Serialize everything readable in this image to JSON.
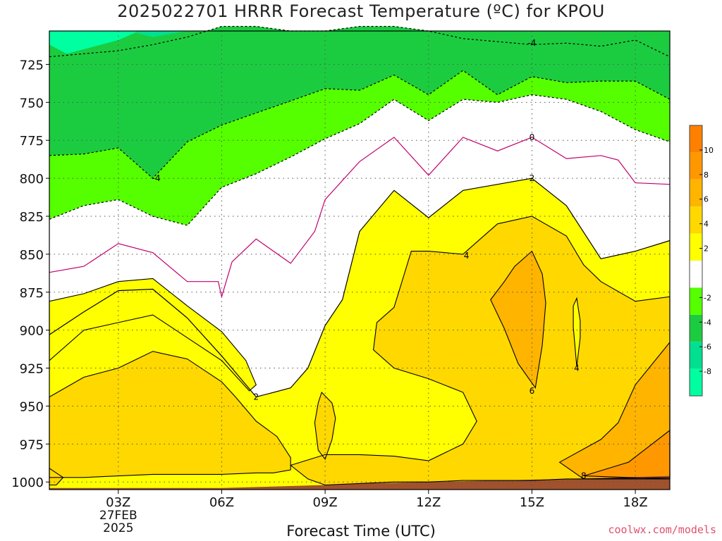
{
  "chart_data": {
    "type": "heatmap",
    "title": "2025022701 HRRR Forecast Temperature (ºC) for KPOU",
    "xlabel": "Forecast Time (UTC)",
    "ylabel": "",
    "x_ticks": [
      "03Z",
      "06Z",
      "09Z",
      "12Z",
      "15Z",
      "18Z"
    ],
    "x_date_label": [
      "27FEB",
      "2025"
    ],
    "x_range_hours": [
      1,
      19
    ],
    "y_ticks": [
      725,
      750,
      775,
      800,
      825,
      850,
      875,
      900,
      925,
      950,
      975,
      1000
    ],
    "y_range_hPa": [
      703,
      1005
    ],
    "grid": true,
    "colorbar": {
      "ticks": [
        -8,
        -6,
        -4,
        -2,
        2,
        4,
        6,
        8,
        10
      ],
      "bins": [
        {
          "lo": -10,
          "hi": -8,
          "color": "#00ffa0"
        },
        {
          "lo": -8,
          "hi": -6,
          "color": "#00e090"
        },
        {
          "lo": -6,
          "hi": -4,
          "color": "#1ccc40"
        },
        {
          "lo": -4,
          "hi": -2,
          "color": "#55ff00"
        },
        {
          "lo": -2,
          "hi": 2,
          "color": "#ffffff"
        },
        {
          "lo": 2,
          "hi": 4,
          "color": "#ffff00"
        },
        {
          "lo": 4,
          "hi": 6,
          "color": "#ffd800"
        },
        {
          "lo": 6,
          "hi": 8,
          "color": "#ffb400"
        },
        {
          "lo": 8,
          "hi": 10,
          "color": "#ff9800"
        },
        {
          "lo": 10,
          "hi": 12,
          "color": "#ff8000"
        }
      ]
    },
    "ground_color": "#a0522d",
    "isotherms": {
      "minus4": {
        "value": -4,
        "style": "dashed",
        "color": "#000000",
        "upper": [
          [
            1,
            720
          ],
          [
            2,
            718
          ],
          [
            3,
            716
          ],
          [
            4,
            712
          ],
          [
            5,
            707
          ],
          [
            6,
            700
          ],
          [
            7,
            700
          ],
          [
            8,
            703
          ],
          [
            9,
            703
          ],
          [
            10,
            700
          ],
          [
            11,
            700
          ],
          [
            12,
            703
          ],
          [
            13,
            708
          ],
          [
            14,
            710
          ],
          [
            15,
            712
          ],
          [
            16,
            711
          ],
          [
            17,
            713
          ],
          [
            18,
            709
          ],
          [
            19,
            720
          ]
        ],
        "lower": [
          [
            1,
            785
          ],
          [
            2,
            784
          ],
          [
            3,
            780
          ],
          [
            4,
            800
          ],
          [
            5,
            776
          ],
          [
            6,
            765
          ],
          [
            7,
            757
          ],
          [
            8,
            749
          ],
          [
            9,
            741
          ],
          [
            10,
            742
          ],
          [
            11,
            732
          ],
          [
            12,
            745
          ],
          [
            13,
            729
          ],
          [
            14,
            745
          ],
          [
            15,
            733
          ],
          [
            16,
            737
          ],
          [
            17,
            736
          ],
          [
            18,
            736
          ],
          [
            19,
            748
          ]
        ]
      },
      "minus2": {
        "value": -2,
        "style": "dashed",
        "color": "#000000",
        "points": [
          [
            1,
            827
          ],
          [
            2,
            818
          ],
          [
            3,
            814
          ],
          [
            4,
            825
          ],
          [
            5,
            831
          ],
          [
            6,
            806
          ],
          [
            7,
            797
          ],
          [
            8,
            786
          ],
          [
            9,
            774
          ],
          [
            10,
            764
          ],
          [
            11,
            748
          ],
          [
            12,
            762
          ],
          [
            13,
            748
          ],
          [
            14,
            750
          ],
          [
            15,
            745
          ],
          [
            16,
            748
          ],
          [
            17,
            756
          ],
          [
            18,
            768
          ],
          [
            19,
            776
          ]
        ]
      },
      "zero": {
        "value": 0,
        "style": "solid",
        "color": "#c00070",
        "points": [
          [
            1,
            862
          ],
          [
            2,
            858
          ],
          [
            3,
            843
          ],
          [
            4,
            849
          ],
          [
            5,
            868
          ],
          [
            5.9,
            868
          ],
          [
            6,
            878
          ],
          [
            6.3,
            855
          ],
          [
            7,
            840
          ],
          [
            8,
            856
          ],
          [
            8.7,
            835
          ],
          [
            9,
            814
          ],
          [
            10,
            789
          ],
          [
            11,
            773
          ],
          [
            12,
            798
          ],
          [
            13,
            773
          ],
          [
            14,
            782
          ],
          [
            15,
            773
          ],
          [
            16,
            787
          ],
          [
            17,
            785
          ],
          [
            17.5,
            788
          ],
          [
            18,
            803
          ],
          [
            19,
            804
          ]
        ]
      },
      "plus2": {
        "value": 2,
        "style": "solid",
        "color": "#000000",
        "points": [
          [
            1,
            903
          ],
          [
            2,
            888
          ],
          [
            3,
            874
          ],
          [
            4,
            873
          ],
          [
            5,
            892
          ],
          [
            6,
            917
          ],
          [
            7,
            944
          ],
          [
            8,
            938
          ],
          [
            8.5,
            925
          ],
          [
            9,
            897
          ],
          [
            9.5,
            880
          ],
          [
            10,
            835
          ],
          [
            11,
            808
          ],
          [
            12,
            826
          ],
          [
            13,
            808
          ],
          [
            14,
            804
          ],
          [
            15,
            800
          ],
          [
            16,
            818
          ],
          [
            17,
            853
          ],
          [
            18,
            848
          ],
          [
            19,
            841
          ]
        ]
      }
    },
    "regions": {
      "t4_main": [
        [
          1,
          944
        ],
        [
          2,
          931
        ],
        [
          3,
          925
        ],
        [
          4,
          914
        ],
        [
          5,
          919
        ],
        [
          6,
          934
        ],
        [
          6.4,
          944
        ],
        [
          7,
          960
        ],
        [
          7.6,
          970
        ],
        [
          8,
          984
        ],
        [
          8,
          992
        ],
        [
          7.5,
          994
        ],
        [
          7,
          994
        ],
        [
          6,
          995
        ],
        [
          5,
          995
        ],
        [
          4,
          995
        ],
        [
          3,
          996
        ],
        [
          2,
          997
        ],
        [
          1,
          997
        ]
      ],
      "t4_upper_left_strip": [
        [
          1,
          881
        ],
        [
          2,
          876
        ],
        [
          3,
          868
        ],
        [
          4,
          866
        ],
        [
          5,
          884
        ],
        [
          6,
          901
        ],
        [
          6.7,
          920
        ],
        [
          7,
          936
        ],
        [
          6.8,
          940
        ],
        [
          6,
          920
        ],
        [
          5,
          905
        ],
        [
          4,
          890
        ],
        [
          3,
          895
        ],
        [
          2,
          900
        ],
        [
          1,
          920
        ]
      ],
      "t4_bottom_band": [
        [
          8,
          989
        ],
        [
          9,
          982
        ],
        [
          10,
          982
        ],
        [
          11,
          983
        ],
        [
          12,
          986
        ],
        [
          13,
          975
        ],
        [
          13.4,
          960
        ],
        [
          13,
          941
        ],
        [
          12,
          932
        ],
        [
          11,
          925
        ],
        [
          10.4,
          913
        ],
        [
          10.5,
          895
        ],
        [
          11,
          885
        ],
        [
          11.5,
          848
        ],
        [
          12,
          848
        ],
        [
          13,
          850
        ],
        [
          13.5,
          840
        ],
        [
          14,
          830
        ],
        [
          15,
          825
        ],
        [
          16,
          838
        ],
        [
          16.5,
          857
        ],
        [
          17,
          868
        ],
        [
          18,
          881
        ],
        [
          19,
          878
        ],
        [
          19,
          998
        ],
        [
          18,
          998
        ],
        [
          17,
          998
        ],
        [
          16,
          998
        ],
        [
          15,
          999
        ],
        [
          14,
          999
        ],
        [
          13,
          999
        ],
        [
          12,
          1000
        ],
        [
          11,
          1000
        ],
        [
          10,
          1001
        ],
        [
          9,
          1002
        ],
        [
          8.5,
          998
        ]
      ],
      "t4_bubble_a": [
        [
          8.9,
          941
        ],
        [
          9.2,
          948
        ],
        [
          9.3,
          958
        ],
        [
          9.2,
          972
        ],
        [
          9,
          985
        ],
        [
          8.8,
          979
        ],
        [
          8.7,
          961
        ],
        [
          8.8,
          948
        ]
      ],
      "t6_blob": [
        [
          15,
          848
        ],
        [
          15.3,
          863
        ],
        [
          15.4,
          882
        ],
        [
          15.3,
          910
        ],
        [
          15.1,
          938
        ],
        [
          14.6,
          922
        ],
        [
          14.2,
          899
        ],
        [
          13.8,
          880
        ],
        [
          14.2,
          868
        ],
        [
          14.5,
          858
        ]
      ],
      "t4_sliver": [
        [
          16.3,
          879
        ],
        [
          16.4,
          894
        ],
        [
          16.4,
          905
        ],
        [
          16.3,
          924
        ],
        [
          16.2,
          898
        ],
        [
          16.2,
          884
        ]
      ],
      "t6_bottom_right": [
        [
          15.8,
          987
        ],
        [
          17,
          972
        ],
        [
          17.5,
          961
        ],
        [
          18,
          936
        ],
        [
          19,
          908
        ],
        [
          19,
          997
        ],
        [
          16.5,
          998
        ]
      ],
      "t8_bottom_right": [
        [
          16.5,
          996
        ],
        [
          17.8,
          987
        ],
        [
          18.2,
          980
        ],
        [
          19,
          966
        ],
        [
          19,
          998
        ]
      ],
      "t4_left_corner": [
        [
          1,
          991
        ],
        [
          1.4,
          997
        ],
        [
          1.2,
          1002
        ],
        [
          1,
          1002
        ]
      ]
    },
    "contour_labels": [
      {
        "text": "-4",
        "x": 15.0,
        "y": 711
      },
      {
        "text": "-4",
        "x": 4.1,
        "y": 800
      },
      {
        "text": "0",
        "x": 15.0,
        "y": 773
      },
      {
        "text": "2",
        "x": 15.0,
        "y": 800
      },
      {
        "text": "4",
        "x": 13.1,
        "y": 851
      },
      {
        "text": "2",
        "x": 7.0,
        "y": 944
      },
      {
        "text": "6",
        "x": 15.0,
        "y": 940
      },
      {
        "text": "4",
        "x": 16.3,
        "y": 925
      },
      {
        "text": "8",
        "x": 16.5,
        "y": 996
      }
    ]
  },
  "watermark": "coolwx.com/models"
}
